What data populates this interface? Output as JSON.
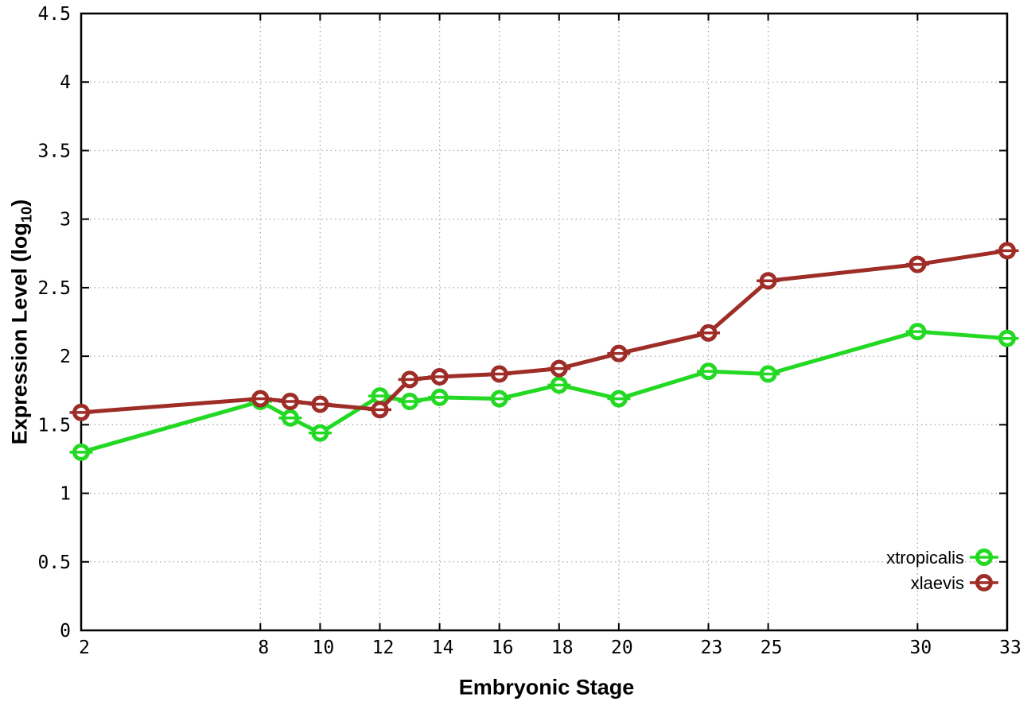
{
  "chart_data": {
    "type": "line",
    "title": "",
    "xlabel": "Embryonic Stage",
    "ylabel": "Expression Level (log10)",
    "ylabel_main": "Expression Level (log",
    "ylabel_sub": "10",
    "ylabel_close": ")",
    "xlim": [
      2,
      33
    ],
    "ylim": [
      0,
      4.5
    ],
    "x_ticks": [
      2,
      8,
      10,
      12,
      14,
      16,
      18,
      20,
      23,
      25,
      30,
      33
    ],
    "y_ticks": [
      0,
      0.5,
      1,
      1.5,
      2,
      2.5,
      3,
      3.5,
      4,
      4.5
    ],
    "grid": true,
    "legend_position": "inside-bottom-right",
    "marker": "open-circle-with-errorbar",
    "x": [
      2,
      8,
      9,
      10,
      12,
      13,
      14,
      16,
      18,
      20,
      23,
      25,
      30,
      33
    ],
    "series": [
      {
        "name": "xtropicalis",
        "color": "#23d923",
        "values": [
          1.3,
          1.67,
          1.55,
          1.44,
          1.71,
          1.67,
          1.7,
          1.69,
          1.79,
          1.69,
          1.89,
          1.87,
          2.18,
          2.13
        ]
      },
      {
        "name": "xlaevis",
        "color": "#9e2d28",
        "values": [
          1.59,
          1.69,
          1.67,
          1.65,
          1.61,
          1.83,
          1.85,
          1.87,
          1.91,
          2.02,
          2.17,
          2.55,
          2.67,
          2.77
        ]
      }
    ],
    "colors": {
      "axis": "#000000",
      "grid": "#aaaaaa",
      "background": "#ffffff",
      "marker_fill": "#ffffff"
    }
  }
}
